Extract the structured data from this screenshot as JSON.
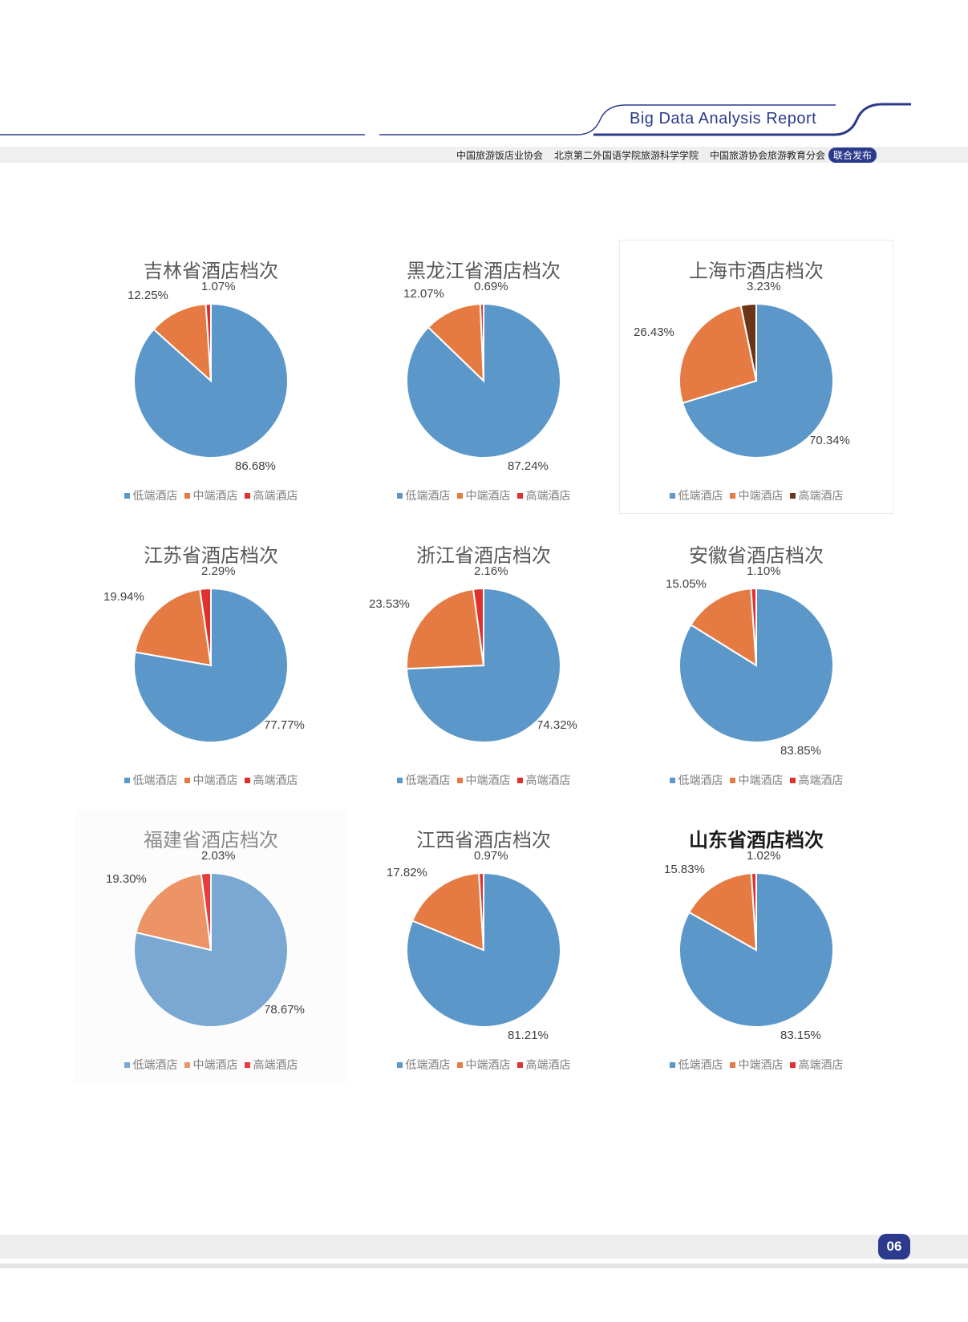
{
  "header": {
    "report_title": "Big Data Analysis Report",
    "organizations": [
      "中国旅游饭店业协会",
      "北京第二外国语学院旅游科学学院",
      "中国旅游协会旅游教育分会"
    ],
    "badge": "联合发布",
    "accent_color": "#2b3a8c"
  },
  "footer": {
    "page_number": "06"
  },
  "legend_labels": [
    "低端酒店",
    "中端酒店",
    "高端酒店"
  ],
  "chart_data": [
    {
      "type": "pie",
      "title": "吉林省酒店档次",
      "categories": [
        "低端酒店",
        "中端酒店",
        "高端酒店"
      ],
      "values": [
        86.68,
        12.25,
        1.07
      ],
      "labels": [
        "86.68%",
        "12.25%",
        "1.07%"
      ],
      "colors": [
        "#5b97c9",
        "#e57b42",
        "#e03131"
      ]
    },
    {
      "type": "pie",
      "title": "黑龙江省酒店档次",
      "categories": [
        "低端酒店",
        "中端酒店",
        "高端酒店"
      ],
      "values": [
        87.24,
        12.07,
        0.69
      ],
      "labels": [
        "87.24%",
        "12.07%",
        "0.69%"
      ],
      "colors": [
        "#5b97c9",
        "#e57b42",
        "#e03131"
      ]
    },
    {
      "type": "pie",
      "title": "上海市酒店档次",
      "categories": [
        "低端酒店",
        "中端酒店",
        "高端酒店"
      ],
      "values": [
        70.34,
        26.43,
        3.23
      ],
      "labels": [
        "70.34%",
        "26.43%",
        "3.23%"
      ],
      "colors": [
        "#5b97c9",
        "#e57b42",
        "#6b3519"
      ]
    },
    {
      "type": "pie",
      "title": "江苏省酒店档次",
      "categories": [
        "低端酒店",
        "中端酒店",
        "高端酒店"
      ],
      "values": [
        77.77,
        19.94,
        2.29
      ],
      "labels": [
        "77.77%",
        "19.94%",
        "2.29%"
      ],
      "colors": [
        "#5b97c9",
        "#e57b42",
        "#e03131"
      ]
    },
    {
      "type": "pie",
      "title": "浙江省酒店档次",
      "categories": [
        "低端酒店",
        "中端酒店",
        "高端酒店"
      ],
      "values": [
        74.32,
        23.53,
        2.16
      ],
      "labels": [
        "74.32%",
        "23.53%",
        "2.16%"
      ],
      "colors": [
        "#5b97c9",
        "#e57b42",
        "#e03131"
      ]
    },
    {
      "type": "pie",
      "title": "安徽省酒店档次",
      "categories": [
        "低端酒店",
        "中端酒店",
        "高端酒店"
      ],
      "values": [
        83.85,
        15.05,
        1.1
      ],
      "labels": [
        "83.85%",
        "15.05%",
        "1.10%"
      ],
      "colors": [
        "#5b97c9",
        "#e57b42",
        "#e03131"
      ]
    },
    {
      "type": "pie",
      "title": "福建省酒店档次",
      "categories": [
        "低端酒店",
        "中端酒店",
        "高端酒店"
      ],
      "values": [
        78.67,
        19.3,
        2.03
      ],
      "labels": [
        "78.67%",
        "19.30%",
        "2.03%"
      ],
      "colors": [
        "#7aa8d3",
        "#ec9466",
        "#e83c3c"
      ]
    },
    {
      "type": "pie",
      "title": "江西省酒店档次",
      "categories": [
        "低端酒店",
        "中端酒店",
        "高端酒店"
      ],
      "values": [
        81.21,
        17.82,
        0.97
      ],
      "labels": [
        "81.21%",
        "17.82%",
        "0.97%"
      ],
      "colors": [
        "#5b97c9",
        "#e57b42",
        "#e03131"
      ]
    },
    {
      "type": "pie",
      "title": "山东省酒店档次",
      "categories": [
        "低端酒店",
        "中端酒店",
        "高端酒店"
      ],
      "values": [
        83.15,
        15.83,
        1.02
      ],
      "labels": [
        "83.15%",
        "15.83%",
        "1.02%"
      ],
      "colors": [
        "#5b97c9",
        "#e57b42",
        "#e03131"
      ]
    }
  ]
}
